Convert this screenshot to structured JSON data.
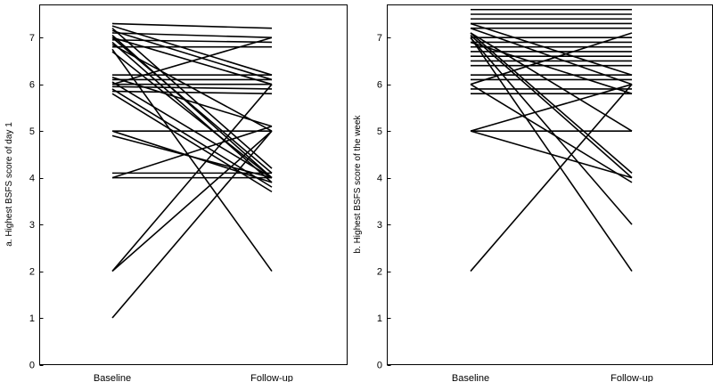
{
  "chart_data": [
    {
      "type": "line",
      "title": "",
      "ylabel": "a. Highest BSFS score of day 1",
      "xlabel": "",
      "categories": [
        "Baseline",
        "Follow-up"
      ],
      "ylim": [
        0,
        7.7
      ],
      "yticks": [
        "0",
        "1",
        "2",
        "3",
        "4",
        "5",
        "6",
        "7"
      ],
      "grid": false,
      "series": [
        {
          "values": [
            7.3,
            7.2
          ]
        },
        {
          "values": [
            7.25,
            6.2
          ]
        },
        {
          "values": [
            7.2,
            4.2
          ]
        },
        {
          "values": [
            7.15,
            6.1
          ]
        },
        {
          "values": [
            7.1,
            7.0
          ]
        },
        {
          "values": [
            7.05,
            4.0
          ]
        },
        {
          "values": [
            7.0,
            6.0
          ]
        },
        {
          "values": [
            7.0,
            4.1
          ]
        },
        {
          "values": [
            6.95,
            6.9
          ]
        },
        {
          "values": [
            6.9,
            3.9
          ]
        },
        {
          "values": [
            6.85,
            5.0
          ]
        },
        {
          "values": [
            6.8,
            6.8
          ]
        },
        {
          "values": [
            6.75,
            2.0
          ]
        },
        {
          "values": [
            6.7,
            4.0
          ]
        },
        {
          "values": [
            6.2,
            6.2
          ]
        },
        {
          "values": [
            6.15,
            5.1
          ]
        },
        {
          "values": [
            6.1,
            6.1
          ]
        },
        {
          "values": [
            6.05,
            4.0
          ]
        },
        {
          "values": [
            6.0,
            7.0
          ]
        },
        {
          "values": [
            6.0,
            6.0
          ]
        },
        {
          "values": [
            5.95,
            5.9
          ]
        },
        {
          "values": [
            5.9,
            3.8
          ]
        },
        {
          "values": [
            5.85,
            5.8
          ]
        },
        {
          "values": [
            5.8,
            3.7
          ]
        },
        {
          "values": [
            5.0,
            5.0
          ]
        },
        {
          "values": [
            5.0,
            3.9
          ]
        },
        {
          "values": [
            4.9,
            4.0
          ]
        },
        {
          "values": [
            4.1,
            4.1
          ]
        },
        {
          "values": [
            4.0,
            5.1
          ]
        },
        {
          "values": [
            4.0,
            4.0
          ]
        },
        {
          "values": [
            2.0,
            6.0
          ]
        },
        {
          "values": [
            2.0,
            5.0
          ]
        },
        {
          "values": [
            1.0,
            5.0
          ]
        }
      ]
    },
    {
      "type": "line",
      "title": "",
      "ylabel": "b. Highest BSFS score of the week",
      "xlabel": "",
      "categories": [
        "Baseline",
        "Follow-up"
      ],
      "ylim": [
        0,
        7.7
      ],
      "yticks": [
        "0",
        "1",
        "2",
        "3",
        "4",
        "5",
        "6",
        "7"
      ],
      "grid": false,
      "series": [
        {
          "values": [
            7.6,
            7.6
          ]
        },
        {
          "values": [
            7.5,
            7.5
          ]
        },
        {
          "values": [
            7.4,
            7.4
          ]
        },
        {
          "values": [
            7.3,
            7.3
          ]
        },
        {
          "values": [
            7.3,
            6.2
          ]
        },
        {
          "values": [
            7.2,
            7.2
          ]
        },
        {
          "values": [
            7.2,
            6.0
          ]
        },
        {
          "values": [
            7.1,
            5.0
          ]
        },
        {
          "values": [
            7.1,
            4.1
          ]
        },
        {
          "values": [
            7.05,
            4.0
          ]
        },
        {
          "values": [
            7.0,
            3.0
          ]
        },
        {
          "values": [
            7.0,
            7.0
          ]
        },
        {
          "values": [
            7.0,
            2.0
          ]
        },
        {
          "values": [
            6.9,
            6.9
          ]
        },
        {
          "values": [
            6.9,
            5.8
          ]
        },
        {
          "values": [
            6.8,
            6.8
          ]
        },
        {
          "values": [
            6.7,
            6.7
          ]
        },
        {
          "values": [
            6.6,
            6.6
          ]
        },
        {
          "values": [
            6.5,
            6.5
          ]
        },
        {
          "values": [
            6.4,
            6.4
          ]
        },
        {
          "values": [
            6.2,
            6.2
          ]
        },
        {
          "values": [
            6.1,
            6.1
          ]
        },
        {
          "values": [
            6.0,
            7.1
          ]
        },
        {
          "values": [
            6.0,
            3.9
          ]
        },
        {
          "values": [
            5.9,
            5.9
          ]
        },
        {
          "values": [
            5.8,
            5.8
          ]
        },
        {
          "values": [
            5.0,
            5.0
          ]
        },
        {
          "values": [
            5.0,
            4.0
          ]
        },
        {
          "values": [
            5.0,
            6.0
          ]
        },
        {
          "values": [
            2.0,
            6.0
          ]
        }
      ]
    }
  ]
}
